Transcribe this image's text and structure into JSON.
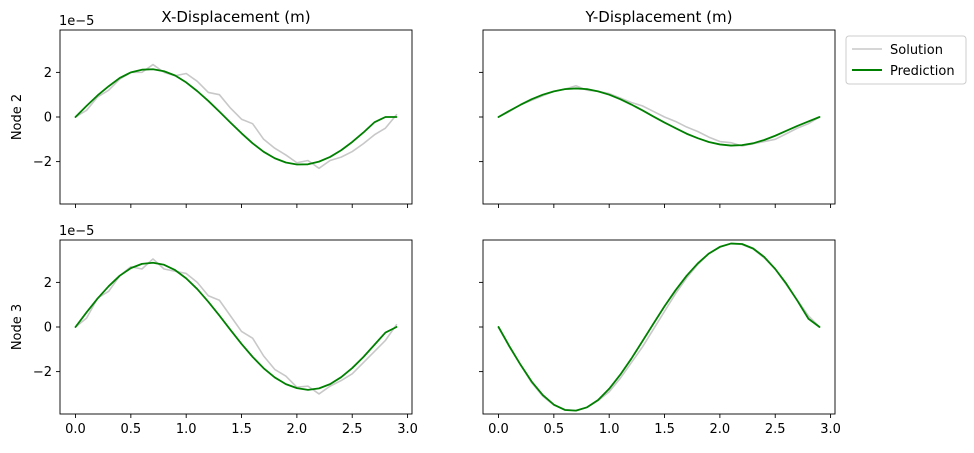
{
  "figure": {
    "col_titles": [
      "X-Displacement (m)",
      "Y-Displacement (m)"
    ],
    "row_labels": [
      "Node 2",
      "Node 3"
    ],
    "offset_text": "1e−5",
    "legend": {
      "solution": "Solution",
      "prediction": "Prediction",
      "placement": "outside-top-right"
    },
    "colors": {
      "solution": "#c8c8c8",
      "prediction": "#008000",
      "axes": "#000000"
    }
  },
  "chart_data": [
    {
      "type": "line",
      "panel": "node2-x",
      "title": "X-Displacement (m)",
      "ylabel": "Node 2",
      "xlim": [
        -0.14,
        3.04
      ],
      "ylim": [
        -3.9,
        3.9
      ],
      "xticks": [
        "0.0",
        "0.5",
        "1.0",
        "1.5",
        "2.0",
        "2.5",
        "3.0"
      ],
      "show_xtick_labels": false,
      "yticks": [
        "−2",
        "0",
        "2"
      ],
      "show_ytick_labels": true,
      "y_scale_label": "1e−5",
      "x": [
        0.0,
        0.1,
        0.2,
        0.3,
        0.4,
        0.5,
        0.6,
        0.7,
        0.8,
        0.9,
        1.0,
        1.1,
        1.2,
        1.3,
        1.4,
        1.5,
        1.6,
        1.7,
        1.8,
        1.9,
        2.0,
        2.1,
        2.2,
        2.3,
        2.4,
        2.5,
        2.6,
        2.7,
        2.8,
        2.9
      ],
      "series": [
        {
          "name": "Solution",
          "values": [
            0.0,
            0.3,
            0.9,
            1.2,
            1.7,
            2.0,
            2.0,
            2.35,
            2.0,
            1.85,
            1.95,
            1.6,
            1.1,
            1.0,
            0.4,
            -0.1,
            -0.3,
            -1.0,
            -1.4,
            -1.7,
            -2.05,
            -1.95,
            -2.3,
            -1.95,
            -1.8,
            -1.55,
            -1.2,
            -0.8,
            -0.5,
            0.1
          ]
        },
        {
          "name": "Prediction",
          "values": [
            0.0,
            0.5,
            0.97,
            1.38,
            1.75,
            2.0,
            2.12,
            2.14,
            2.05,
            1.86,
            1.55,
            1.16,
            0.72,
            0.24,
            -0.25,
            -0.73,
            -1.18,
            -1.56,
            -1.85,
            -2.04,
            -2.13,
            -2.12,
            -2.0,
            -1.79,
            -1.49,
            -1.12,
            -0.7,
            -0.24,
            0.0,
            0.0
          ]
        }
      ]
    },
    {
      "type": "line",
      "panel": "node2-y",
      "title": "Y-Displacement (m)",
      "ylabel": "",
      "xlim": [
        -0.14,
        3.04
      ],
      "ylim": [
        -3.9,
        3.9
      ],
      "xticks": [
        "0.0",
        "0.5",
        "1.0",
        "1.5",
        "2.0",
        "2.5",
        "3.0"
      ],
      "show_xtick_labels": false,
      "yticks": [
        "−2",
        "0",
        "2"
      ],
      "show_ytick_labels": false,
      "x": [
        0.0,
        0.1,
        0.2,
        0.3,
        0.4,
        0.5,
        0.6,
        0.7,
        0.8,
        0.9,
        1.0,
        1.1,
        1.2,
        1.3,
        1.4,
        1.5,
        1.6,
        1.7,
        1.8,
        1.9,
        2.0,
        2.1,
        2.2,
        2.3,
        2.4,
        2.5,
        2.6,
        2.7,
        2.8,
        2.9
      ],
      "series": [
        {
          "name": "Solution",
          "values": [
            0.0,
            0.25,
            0.55,
            0.75,
            0.95,
            1.15,
            1.25,
            1.4,
            1.2,
            1.15,
            1.05,
            0.85,
            0.65,
            0.5,
            0.25,
            0.0,
            -0.2,
            -0.45,
            -0.65,
            -0.9,
            -1.1,
            -1.15,
            -1.3,
            -1.2,
            -1.1,
            -1.0,
            -0.75,
            -0.5,
            -0.3,
            0.0
          ]
        },
        {
          "name": "Prediction",
          "values": [
            0.0,
            0.28,
            0.55,
            0.8,
            1.0,
            1.15,
            1.25,
            1.28,
            1.25,
            1.15,
            1.0,
            0.8,
            0.56,
            0.3,
            0.02,
            -0.25,
            -0.5,
            -0.75,
            -0.95,
            -1.12,
            -1.23,
            -1.28,
            -1.26,
            -1.18,
            -1.03,
            -0.84,
            -0.62,
            -0.4,
            -0.2,
            0.0
          ]
        }
      ]
    },
    {
      "type": "line",
      "panel": "node3-x",
      "title": "",
      "ylabel": "Node 3",
      "xlim": [
        -0.14,
        3.04
      ],
      "ylim": [
        -3.9,
        3.9
      ],
      "xticks": [
        "0.0",
        "0.5",
        "1.0",
        "1.5",
        "2.0",
        "2.5",
        "3.0"
      ],
      "show_xtick_labels": true,
      "yticks": [
        "−2",
        "0",
        "2"
      ],
      "show_ytick_labels": true,
      "y_scale_label": "1e−5",
      "x": [
        0.0,
        0.1,
        0.2,
        0.3,
        0.4,
        0.5,
        0.6,
        0.7,
        0.8,
        0.9,
        1.0,
        1.1,
        1.2,
        1.3,
        1.4,
        1.5,
        1.6,
        1.7,
        1.8,
        1.9,
        2.0,
        2.1,
        2.2,
        2.3,
        2.4,
        2.5,
        2.6,
        2.7,
        2.8,
        2.9
      ],
      "series": [
        {
          "name": "Solution",
          "values": [
            0.0,
            0.4,
            1.3,
            1.6,
            2.3,
            2.7,
            2.6,
            3.05,
            2.6,
            2.5,
            2.4,
            2.0,
            1.4,
            1.2,
            0.5,
            -0.2,
            -0.5,
            -1.3,
            -1.9,
            -2.2,
            -2.7,
            -2.65,
            -3.0,
            -2.65,
            -2.4,
            -2.1,
            -1.6,
            -1.1,
            -0.6,
            0.1
          ]
        },
        {
          "name": "Prediction",
          "values": [
            0.0,
            0.66,
            1.28,
            1.83,
            2.3,
            2.64,
            2.83,
            2.88,
            2.79,
            2.55,
            2.18,
            1.7,
            1.13,
            0.51,
            -0.13,
            -0.76,
            -1.34,
            -1.85,
            -2.26,
            -2.56,
            -2.74,
            -2.82,
            -2.75,
            -2.56,
            -2.25,
            -1.84,
            -1.35,
            -0.8,
            -0.25,
            0.0
          ]
        }
      ]
    },
    {
      "type": "line",
      "panel": "node3-y",
      "title": "",
      "ylabel": "",
      "xlim": [
        -0.14,
        3.04
      ],
      "ylim": [
        -3.9,
        3.9
      ],
      "xticks": [
        "0.0",
        "0.5",
        "1.0",
        "1.5",
        "2.0",
        "2.5",
        "3.0"
      ],
      "show_xtick_labels": true,
      "yticks": [
        "−2",
        "0",
        "2"
      ],
      "show_ytick_labels": false,
      "x": [
        0.0,
        0.1,
        0.2,
        0.3,
        0.4,
        0.5,
        0.6,
        0.7,
        0.8,
        0.9,
        1.0,
        1.1,
        1.2,
        1.3,
        1.4,
        1.5,
        1.6,
        1.7,
        1.8,
        1.9,
        2.0,
        2.1,
        2.2,
        2.3,
        2.4,
        2.5,
        2.6,
        2.7,
        2.8,
        2.9
      ],
      "series": [
        {
          "name": "Solution",
          "values": [
            0.0,
            -0.9,
            -1.7,
            -2.5,
            -3.1,
            -3.5,
            -3.7,
            -3.75,
            -3.6,
            -3.3,
            -2.9,
            -2.3,
            -1.6,
            -0.9,
            -0.1,
            0.7,
            1.5,
            2.2,
            2.8,
            3.3,
            3.6,
            3.75,
            3.7,
            3.5,
            3.1,
            2.6,
            1.9,
            1.2,
            0.5,
            0.0
          ]
        },
        {
          "name": "Prediction",
          "values": [
            0.0,
            -0.88,
            -1.7,
            -2.45,
            -3.05,
            -3.48,
            -3.72,
            -3.75,
            -3.6,
            -3.27,
            -2.77,
            -2.14,
            -1.42,
            -0.64,
            0.15,
            0.93,
            1.65,
            2.3,
            2.85,
            3.29,
            3.59,
            3.74,
            3.72,
            3.52,
            3.14,
            2.6,
            1.94,
            1.18,
            0.37,
            0.0
          ]
        }
      ]
    }
  ]
}
